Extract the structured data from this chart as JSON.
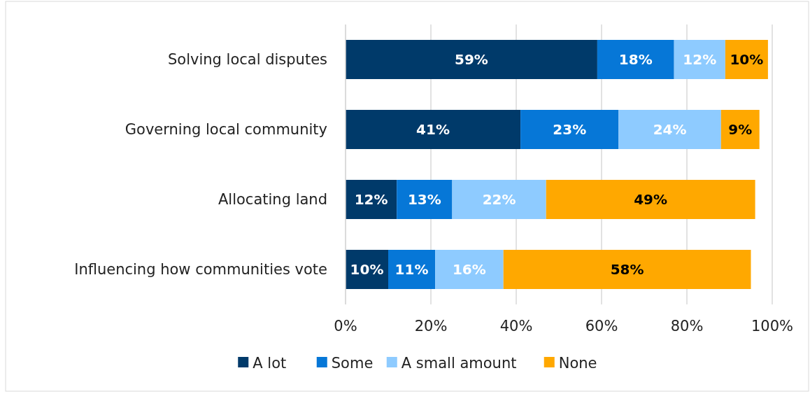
{
  "chart_data": {
    "type": "bar",
    "orientation": "horizontal",
    "stacked": true,
    "categories": [
      "Solving local disputes",
      "Governing local community",
      "Allocating land",
      "Influencing how communities vote"
    ],
    "series": [
      {
        "name": "A lot",
        "color": "#003a6a",
        "values": [
          59,
          41,
          12,
          10
        ],
        "value_labels": [
          "59%",
          "41%",
          "12%",
          "10%"
        ]
      },
      {
        "name": "Some",
        "color": "#0677d7",
        "values": [
          18,
          23,
          13,
          11
        ],
        "value_labels": [
          "18%",
          "23%",
          "13%",
          "11%"
        ]
      },
      {
        "name": "A small amount",
        "color": "#8ecbff",
        "values": [
          12,
          24,
          22,
          16
        ],
        "value_labels": [
          "12%",
          "24%",
          "22%",
          "16%"
        ]
      },
      {
        "name": "None",
        "color": "#ffa800",
        "values": [
          10,
          9,
          49,
          58
        ],
        "value_labels": [
          "10%",
          "9%",
          "49%",
          "58%"
        ]
      }
    ],
    "xlim": [
      0,
      100
    ],
    "xticks": [
      {
        "value": 0,
        "label": "0%"
      },
      {
        "value": 20,
        "label": "20%"
      },
      {
        "value": 40,
        "label": "40%"
      },
      {
        "value": 60,
        "label": "60%"
      },
      {
        "value": 80,
        "label": "80%"
      },
      {
        "value": 100,
        "label": "100%"
      }
    ],
    "grid": "x",
    "legend": "bottom"
  }
}
